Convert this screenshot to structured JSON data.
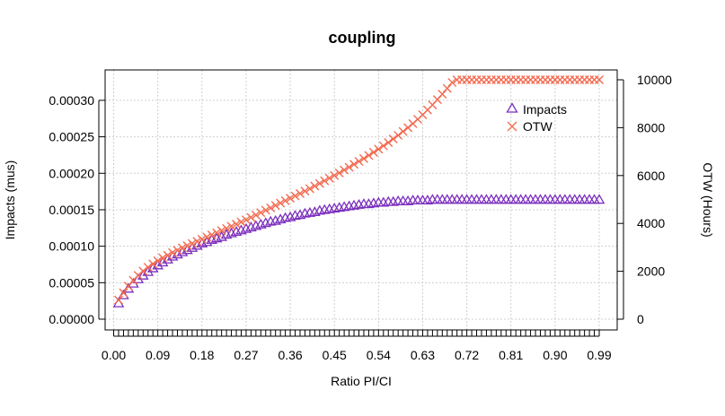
{
  "chart_data": {
    "type": "scatter",
    "title": "coupling",
    "xlabel": "Ratio PI/CI",
    "ylabel_left": "Impacts  (mus)",
    "ylabel_right": "OTW (Hours)",
    "xlim": [
      0.01,
      0.99
    ],
    "ylim_left": [
      0,
      0.00033
    ],
    "ylim_right": [
      0,
      10000
    ],
    "x_tick_labels": [
      "0.00",
      "0.09",
      "0.18",
      "0.27",
      "0.36",
      "0.45",
      "0.54",
      "0.63",
      "0.72",
      "0.81",
      "0.90",
      "0.99"
    ],
    "y_left_tick_labels": [
      "0.00000",
      "0.00005",
      "0.00010",
      "0.00015",
      "0.00020",
      "0.00025",
      "0.00030"
    ],
    "y_right_tick_labels": [
      "0",
      "2000",
      "4000",
      "6000",
      "8000",
      "10000"
    ],
    "grid": true,
    "legend_position": "top-right",
    "series": [
      {
        "name": "Impacts",
        "axis": "left",
        "marker": "triangle-icon",
        "color": "#7B2FBE",
        "x": [
          0.01,
          0.02,
          0.03,
          0.04,
          0.05,
          0.06,
          0.07,
          0.08,
          0.09,
          0.1,
          0.11,
          0.12,
          0.13,
          0.14,
          0.15,
          0.16,
          0.17,
          0.18,
          0.19,
          0.2,
          0.21,
          0.22,
          0.23,
          0.24,
          0.25,
          0.26,
          0.27,
          0.28,
          0.29,
          0.3,
          0.31,
          0.32,
          0.33,
          0.34,
          0.35,
          0.36,
          0.37,
          0.38,
          0.39,
          0.4,
          0.41,
          0.42,
          0.43,
          0.44,
          0.45,
          0.46,
          0.47,
          0.48,
          0.49,
          0.5,
          0.51,
          0.52,
          0.53,
          0.54,
          0.55,
          0.56,
          0.57,
          0.58,
          0.59,
          0.6,
          0.61,
          0.62,
          0.63,
          0.64,
          0.65,
          0.66,
          0.67,
          0.68,
          0.69,
          0.7,
          0.71,
          0.72,
          0.73,
          0.74,
          0.75,
          0.76,
          0.77,
          0.78,
          0.79,
          0.8,
          0.81,
          0.82,
          0.83,
          0.84,
          0.85,
          0.86,
          0.87,
          0.88,
          0.89,
          0.9,
          0.91,
          0.92,
          0.93,
          0.94,
          0.95,
          0.96,
          0.97,
          0.98,
          0.99
        ],
        "y": [
          2.2e-05,
          3.3e-05,
          4.2e-05,
          4.9e-05,
          5.5e-05,
          6e-05,
          6.5e-05,
          7e-05,
          7.4e-05,
          7.8e-05,
          8.2e-05,
          8.6e-05,
          8.9e-05,
          9.2e-05,
          9.5e-05,
          9.8e-05,
          0.000101,
          0.000104,
          0.000106,
          0.000109,
          0.000111,
          0.000113,
          0.000116,
          0.000118,
          0.00012,
          0.000122,
          0.000124,
          0.000126,
          0.000128,
          0.00013,
          0.000132,
          0.000134,
          0.000135,
          0.000137,
          0.000139,
          0.00014,
          0.000142,
          0.000143,
          0.000145,
          0.000146,
          0.000147,
          0.000149,
          0.00015,
          0.000151,
          0.000152,
          0.000153,
          0.000154,
          0.000155,
          0.000156,
          0.000157,
          0.000158,
          0.000158,
          0.000159,
          0.00016,
          0.00016,
          0.000161,
          0.000161,
          0.000162,
          0.000162,
          0.000162,
          0.000163,
          0.000163,
          0.000163,
          0.000163,
          0.000164,
          0.000164,
          0.000164,
          0.000164,
          0.000164,
          0.000164,
          0.000164,
          0.000164,
          0.000164,
          0.000164,
          0.000164,
          0.000164,
          0.000164,
          0.000164,
          0.000164,
          0.000164,
          0.000164,
          0.000164,
          0.000164,
          0.000164,
          0.000164,
          0.000164,
          0.000164,
          0.000164,
          0.000164,
          0.000164,
          0.000164,
          0.000164,
          0.000164,
          0.000164,
          0.000164,
          0.000164,
          0.000164,
          0.000164,
          0.000164
        ]
      },
      {
        "name": "OTW",
        "axis": "right",
        "marker": "cross-icon",
        "color": "#F26A50",
        "x": [
          0.01,
          0.02,
          0.03,
          0.04,
          0.05,
          0.06,
          0.07,
          0.08,
          0.09,
          0.1,
          0.11,
          0.12,
          0.13,
          0.14,
          0.15,
          0.16,
          0.17,
          0.18,
          0.19,
          0.2,
          0.21,
          0.22,
          0.23,
          0.24,
          0.25,
          0.26,
          0.27,
          0.28,
          0.29,
          0.3,
          0.31,
          0.32,
          0.33,
          0.34,
          0.35,
          0.36,
          0.37,
          0.38,
          0.39,
          0.4,
          0.41,
          0.42,
          0.43,
          0.44,
          0.45,
          0.46,
          0.47,
          0.48,
          0.49,
          0.5,
          0.51,
          0.52,
          0.53,
          0.54,
          0.55,
          0.56,
          0.57,
          0.58,
          0.59,
          0.6,
          0.61,
          0.62,
          0.63,
          0.64,
          0.65,
          0.66,
          0.67,
          0.68,
          0.69,
          0.7,
          0.71,
          0.72,
          0.73,
          0.74,
          0.75,
          0.76,
          0.77,
          0.78,
          0.79,
          0.8,
          0.81,
          0.82,
          0.83,
          0.84,
          0.85,
          0.86,
          0.87,
          0.88,
          0.89,
          0.9,
          0.91,
          0.92,
          0.93,
          0.94,
          0.95,
          0.96,
          0.97,
          0.98,
          0.99
        ],
        "y": [
          800,
          1100,
          1380,
          1620,
          1830,
          2010,
          2170,
          2310,
          2440,
          2560,
          2670,
          2780,
          2880,
          2980,
          3070,
          3160,
          3250,
          3340,
          3430,
          3520,
          3610,
          3700,
          3790,
          3880,
          3970,
          4060,
          4150,
          4250,
          4350,
          4450,
          4550,
          4650,
          4750,
          4850,
          4950,
          5050,
          5150,
          5250,
          5350,
          5450,
          5560,
          5670,
          5780,
          5890,
          6000,
          6110,
          6230,
          6350,
          6470,
          6590,
          6710,
          6840,
          6970,
          7100,
          7240,
          7380,
          7530,
          7680,
          7840,
          8000,
          8170,
          8350,
          8540,
          8740,
          8950,
          9170,
          9400,
          9640,
          9890,
          10000,
          10000,
          10000,
          10000,
          10000,
          10000,
          10000,
          10000,
          10000,
          10000,
          10000,
          10000,
          10000,
          10000,
          10000,
          10000,
          10000,
          10000,
          10000,
          10000,
          10000,
          10000,
          10000,
          10000,
          10000,
          10000,
          10000,
          10000,
          10000,
          10000
        ]
      }
    ]
  }
}
